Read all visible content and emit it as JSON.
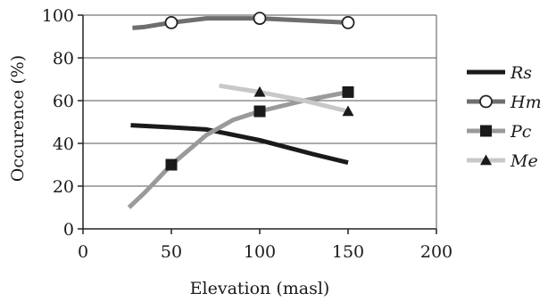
{
  "chart_data": {
    "type": "line",
    "title": "",
    "xlabel": "Elevation (masl)",
    "ylabel": "Occurence (%)",
    "xlim": [
      0,
      200
    ],
    "ylim": [
      0,
      100
    ],
    "x_ticks": [
      0,
      50,
      100,
      150,
      200
    ],
    "y_ticks": [
      0,
      20,
      40,
      60,
      80,
      100
    ],
    "x_tick_labels": [
      "0",
      "50",
      "100",
      "150",
      "200"
    ],
    "y_tick_labels": [
      "0",
      "20",
      "40",
      "60",
      "80",
      "100"
    ],
    "grid": "horizontal",
    "legend_position": "right",
    "series": [
      {
        "name": "Rs",
        "color": "#1a1a1a",
        "marker": "none",
        "x": [
          27,
          50,
          70,
          100,
          130,
          150
        ],
        "y": [
          48.5,
          47.5,
          46.5,
          41.5,
          35,
          31
        ],
        "marker_x": []
      },
      {
        "name": "Hm",
        "color": "#6e6e6e",
        "marker": "circle",
        "x": [
          28,
          35,
          50,
          70,
          100,
          125,
          150
        ],
        "y": [
          94,
          94.5,
          96.5,
          98.5,
          98.5,
          97.5,
          96.5
        ],
        "marker_x": [
          50,
          100,
          150
        ]
      },
      {
        "name": "Pc",
        "color": "#9a9a9a",
        "marker": "square",
        "x": [
          26,
          35,
          50,
          60,
          70,
          85,
          100,
          125,
          150
        ],
        "y": [
          10,
          17,
          30,
          37,
          44,
          51,
          55,
          60,
          64
        ],
        "marker_x": [
          50,
          100,
          150
        ]
      },
      {
        "name": "Me",
        "color": "#c8c8c8",
        "marker": "triangle",
        "x": [
          77,
          100,
          125,
          150
        ],
        "y": [
          67,
          64,
          60,
          55
        ],
        "marker_x": [
          100,
          150
        ]
      }
    ]
  }
}
